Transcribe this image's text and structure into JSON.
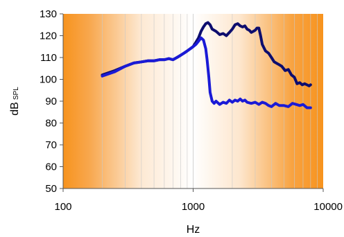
{
  "chart_data": {
    "type": "line",
    "x_scale": "log",
    "xlim": [
      100,
      10000
    ],
    "ylim": [
      50,
      130
    ],
    "xlabel": "Hz",
    "ylabel": "dB",
    "ylabel_sub": "SPL",
    "x_ticks": [
      100,
      1000,
      10000
    ],
    "x_tick_labels": [
      "100",
      "1000",
      "10000"
    ],
    "y_ticks": [
      50,
      60,
      70,
      80,
      90,
      100,
      110,
      120,
      130
    ],
    "y_tick_labels": [
      "50",
      "60",
      "70",
      "80",
      "90",
      "100",
      "110",
      "120",
      "130"
    ],
    "grid": {
      "vertical": true,
      "horizontal": false
    },
    "background": "orange-white-orange gradient",
    "legend": "none",
    "series": [
      {
        "color": "#0d0d6e",
        "x": [
          200,
          250,
          300,
          350,
          400,
          450,
          500,
          550,
          600,
          650,
          700,
          750,
          800,
          850,
          900,
          950,
          1000,
          1050,
          1100,
          1150,
          1200,
          1250,
          1300,
          1350,
          1400,
          1500,
          1600,
          1700,
          1800,
          1900,
          2000,
          2100,
          2200,
          2300,
          2400,
          2500,
          2600,
          2700,
          2800,
          2900,
          3000,
          3100,
          3200,
          3300,
          3400,
          3600,
          3800,
          4000,
          4200,
          4500,
          4800,
          5100,
          5400,
          5700,
          6000,
          6300,
          6600,
          6900,
          7200,
          7500,
          7800,
          8000
        ],
        "y": [
          102,
          104,
          106,
          107.5,
          108,
          108.5,
          108.5,
          109,
          109,
          109.5,
          109,
          110,
          111,
          112,
          113,
          114,
          115,
          117,
          119,
          122,
          124,
          125.5,
          126,
          125,
          123,
          122,
          120.5,
          121,
          120,
          121.5,
          123,
          125,
          125.5,
          124.5,
          124,
          124.5,
          123,
          122.5,
          121.5,
          122,
          122.5,
          123.5,
          123.5,
          120,
          116,
          113,
          112,
          110,
          108,
          107,
          106,
          104,
          104.5,
          102,
          101,
          98,
          98.5,
          97.5,
          98,
          97.5,
          97,
          97.5
        ]
      },
      {
        "color": "#1a1ad6",
        "x": [
          200,
          250,
          300,
          350,
          400,
          450,
          500,
          550,
          600,
          650,
          700,
          750,
          800,
          850,
          900,
          950,
          1000,
          1050,
          1100,
          1150,
          1200,
          1250,
          1280,
          1320,
          1350,
          1400,
          1450,
          1500,
          1600,
          1700,
          1800,
          1900,
          2000,
          2100,
          2200,
          2300,
          2400,
          2500,
          2600,
          2800,
          3000,
          3200,
          3400,
          3600,
          3800,
          4000,
          4300,
          4600,
          5000,
          5400,
          5800,
          6200,
          6600,
          7000,
          7500,
          8000
        ],
        "y": [
          101.5,
          103.5,
          106,
          107.5,
          108,
          108.5,
          108.5,
          109,
          109,
          109.5,
          109,
          110,
          111,
          112,
          113,
          114,
          115,
          116,
          117.5,
          119,
          118,
          114,
          109,
          101,
          94,
          90,
          89,
          90,
          88.5,
          89.5,
          89,
          90.5,
          89.5,
          90.5,
          90,
          91,
          90,
          90.5,
          89.5,
          89,
          89.5,
          88.5,
          89.5,
          89,
          88,
          87.5,
          89,
          88,
          88,
          87.5,
          89,
          88.5,
          88,
          88.5,
          87,
          87
        ]
      }
    ]
  }
}
